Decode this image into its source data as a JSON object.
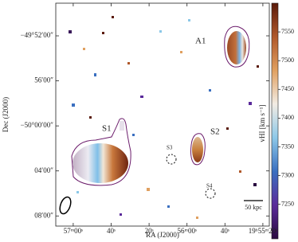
{
  "chart_data": {
    "type": "velocity-map",
    "xlabel": "RA (J2000)",
    "ylabel": "Dec (J2000)",
    "xlim": [
      3429.2,
      3316.6
    ],
    "xticks": [
      {
        "value": 3420,
        "label": "57ᵐ00ˢ"
      },
      {
        "value": 3400,
        "label": "40ˢ"
      },
      {
        "value": 3380,
        "label": "20ˢ"
      },
      {
        "value": 3360,
        "label": "56ᵐ00ˢ"
      },
      {
        "value": 3340,
        "label": "40ˢ"
      },
      {
        "value": 3320,
        "label": "19ʰ55ᵐ20ˢ"
      }
    ],
    "ylim": [
      -3008.9,
      -2989.1
    ],
    "yticks": [
      {
        "value": -2992,
        "label": "−49°52′00″"
      },
      {
        "value": -2996,
        "label": "56′00″"
      },
      {
        "value": -3000,
        "label": "−50°00′00″"
      },
      {
        "value": -3004,
        "label": "04′00″"
      },
      {
        "value": -3008,
        "label": "08′00″"
      }
    ],
    "colorbar": {
      "label": "vHI [km s⁻¹]",
      "lim": [
        7190,
        7600
      ],
      "ticks": [
        7250,
        7300,
        7350,
        7400,
        7450,
        7500,
        7550
      ],
      "colormap": [
        "#2a0a40",
        "#5a2a9a",
        "#3a6fc0",
        "#8cc8e8",
        "#f2ece4",
        "#e0a060",
        "#b0582a",
        "#5a1a0a"
      ]
    },
    "annotations": [
      "A1",
      "S1",
      "S2",
      "S3",
      "S4",
      "50 kpc"
    ]
  }
}
